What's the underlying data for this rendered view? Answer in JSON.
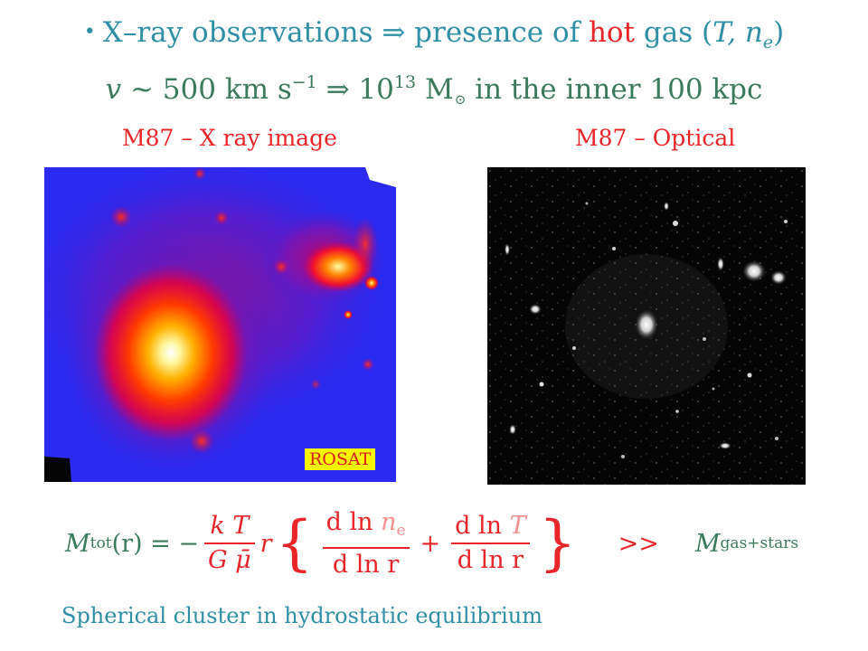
{
  "header": {
    "bullet": "•",
    "line1_part1": "X–ray observations ⇒ presence of ",
    "line1_hot": "hot",
    "line1_part2": " gas (",
    "line1_vars": "T, n",
    "line1_sub": "e",
    "line1_close": ")",
    "line2_v": "v",
    "line2_part1": " ~ 500 km s",
    "line2_exp": "−1",
    "line2_part2": " ⇒ 10",
    "line2_mass_exp": "13",
    "line2_part3": " M",
    "line2_sun": "⊙",
    "line2_part4": " in the inner 100 kpc"
  },
  "images": {
    "xray_label": "M87 – X ray image",
    "optical_label": "M87 – Optical",
    "xray_badge": "ROSAT"
  },
  "formula": {
    "lhs_M": "M",
    "lhs_sub": "tot",
    "lhs_arg": "(r) = −",
    "frac1_num": "k T",
    "frac1_den": "G μ̄",
    "r": "r",
    "brace_open": "{",
    "frac2_num_pre": "d ln ",
    "frac2_num_var": "n",
    "frac2_num_sub": "e",
    "frac2_den": "d ln r",
    "plus": "+",
    "frac3_num_pre": "d ln ",
    "frac3_num_var": "T",
    "frac3_den": "d ln r",
    "brace_close": "}",
    "gg": ">>",
    "rhs_M": "M",
    "rhs_sub": "gas+stars"
  },
  "caption": "Spherical cluster in hydrostatic equilibrium",
  "colors": {
    "teal": "#2f8fa6",
    "green": "#3c7a5c",
    "red": "#e8262a",
    "rosat_bg": "#f7f400"
  }
}
